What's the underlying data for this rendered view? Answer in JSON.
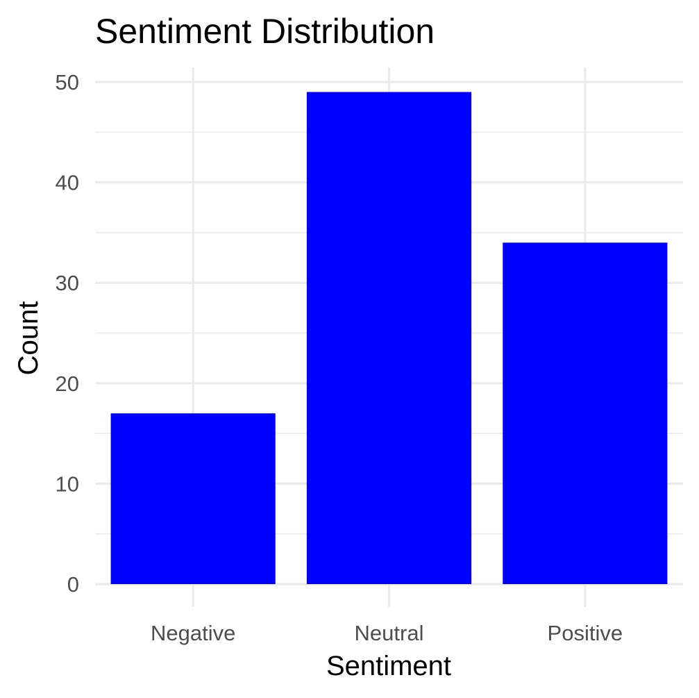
{
  "chart_data": {
    "type": "bar",
    "title": "Sentiment Distribution",
    "xlabel": "Sentiment",
    "ylabel": "Count",
    "categories": [
      "Negative",
      "Neutral",
      "Positive"
    ],
    "values": [
      17,
      49,
      34
    ],
    "ylim": [
      0,
      52
    ],
    "yticks": [
      0,
      10,
      20,
      30,
      40,
      50
    ],
    "y_minor_ticks": [
      5,
      15,
      25,
      35,
      45
    ],
    "grid": true,
    "legend": "none",
    "bar_color": "#0000ff",
    "grid_color": "#ebebeb",
    "background": "#ffffff"
  }
}
